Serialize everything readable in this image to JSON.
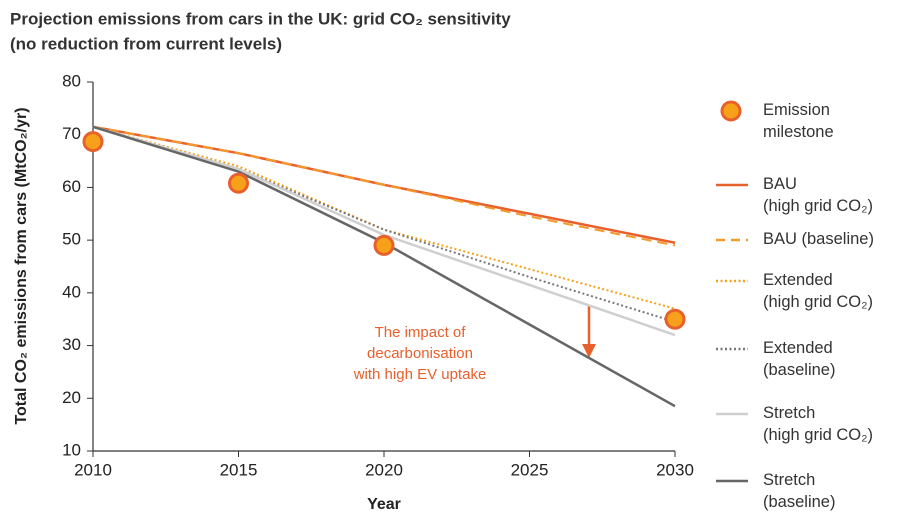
{
  "chart_data": {
    "type": "line",
    "title": "Projection emissions from cars in the UK: grid CO₂ sensitivity",
    "subtitle": "(no reduction from current levels)",
    "x_label": "Year",
    "y_label": "Total CO₂ emissions from cars (MtCO₂/yr)",
    "annotation": "The impact of\ndecarbonisation\nwith high EV uptake",
    "xlim": [
      2010,
      2030
    ],
    "xticks": [
      2010,
      2015,
      2020,
      2025,
      2030
    ],
    "ylim": [
      10,
      80
    ],
    "yticks": [
      10,
      20,
      30,
      40,
      50,
      60,
      70,
      80
    ],
    "x": [
      2010,
      2015,
      2020,
      2025,
      2030
    ],
    "series": [
      {
        "name": "Emission\nmilestone",
        "style": "marker",
        "color": "#f7a11a",
        "edge": "#e8602c",
        "x": [
          2010,
          2015,
          2020,
          2030
        ],
        "values": [
          68.7,
          60.8,
          49,
          35
        ]
      },
      {
        "name": "BAU\n(high grid CO₂)",
        "style": "solid",
        "color": "#e8602c",
        "values": [
          71.5,
          66.5,
          60.5,
          55,
          49.5
        ]
      },
      {
        "name": "BAU (baseline)",
        "style": "dashed",
        "color": "#f39a2a",
        "values": [
          71.5,
          66.5,
          60.5,
          54.5,
          49
        ]
      },
      {
        "name": "Extended\n(high grid CO₂)",
        "style": "dotted",
        "color": "#f7a11a",
        "values": [
          71.5,
          64,
          52,
          44.5,
          37
        ]
      },
      {
        "name": "Extended\n(baseline)",
        "style": "dotted",
        "color": "#777777",
        "values": [
          71.5,
          63.5,
          52,
          43,
          34.5
        ]
      },
      {
        "name": "Stretch\n(high grid CO₂)",
        "style": "solid",
        "color": "#cfcfcf",
        "values": [
          71.5,
          63.5,
          51,
          41.5,
          32
        ]
      },
      {
        "name": "Stretch\n(baseline)",
        "style": "solid",
        "color": "#666666",
        "values": [
          71.5,
          63,
          49.5,
          34,
          18.5
        ]
      }
    ]
  }
}
